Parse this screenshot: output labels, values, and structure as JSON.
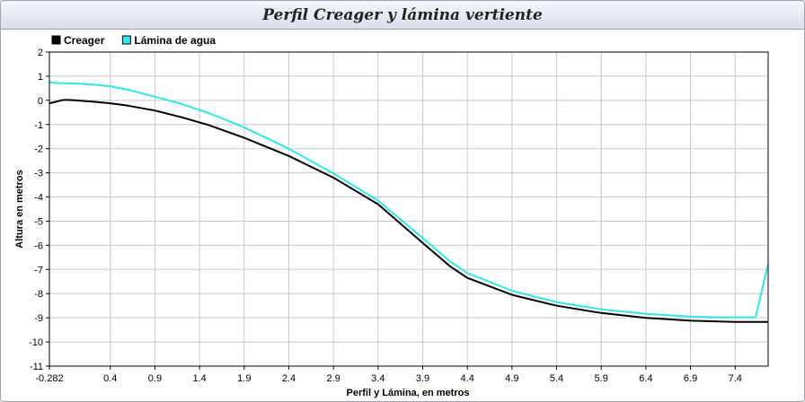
{
  "chart_data": {
    "type": "line",
    "title": "Perfil Creager y lámina vertiente",
    "xlabel": "Perfil y Lámina, en metros",
    "ylabel": "Altura en metros",
    "xlim": [
      -0.282,
      7.77
    ],
    "ylim": [
      -11,
      2
    ],
    "x_ticks": [
      "-0.282",
      "0.4",
      "0.9",
      "1.4",
      "1.9",
      "2.4",
      "2.9",
      "3.4",
      "3.9",
      "4.4",
      "4.9",
      "5.4",
      "5.9",
      "6.4",
      "6.9",
      "7.4"
    ],
    "y_ticks": [
      "2",
      "1",
      "0",
      "-1",
      "-2",
      "-3",
      "-4",
      "-5",
      "-6",
      "-7",
      "-8",
      "-9",
      "-10",
      "-11"
    ],
    "grid": true,
    "legend_position": "top-left",
    "series": [
      {
        "name": "Creager",
        "color": "#000000",
        "x": [
          -0.282,
          -0.2,
          -0.15,
          -0.1,
          0.0,
          0.2,
          0.4,
          0.6,
          0.9,
          1.2,
          1.5,
          1.9,
          2.4,
          2.9,
          3.4,
          3.9,
          4.2,
          4.4,
          4.9,
          5.4,
          5.9,
          6.4,
          6.9,
          7.4,
          7.77
        ],
        "y": [
          -0.12,
          -0.05,
          0.0,
          0.02,
          0.0,
          -0.05,
          -0.12,
          -0.22,
          -0.42,
          -0.7,
          -1.02,
          -1.55,
          -2.3,
          -3.2,
          -4.3,
          -5.9,
          -6.85,
          -7.35,
          -8.05,
          -8.5,
          -8.8,
          -9.0,
          -9.12,
          -9.17,
          -9.17
        ]
      },
      {
        "name": "Lámina de agua",
        "color": "#33e6e6",
        "x": [
          -0.282,
          -0.2,
          0.0,
          0.2,
          0.4,
          0.6,
          0.9,
          1.2,
          1.5,
          1.9,
          2.4,
          2.9,
          3.4,
          3.9,
          4.2,
          4.4,
          4.9,
          5.4,
          5.9,
          6.4,
          6.9,
          7.2,
          7.4,
          7.63,
          7.77
        ],
        "y": [
          0.75,
          0.72,
          0.7,
          0.66,
          0.58,
          0.44,
          0.15,
          -0.15,
          -0.52,
          -1.12,
          -2.0,
          -3.02,
          -4.15,
          -5.7,
          -6.65,
          -7.15,
          -7.88,
          -8.35,
          -8.65,
          -8.84,
          -8.95,
          -8.98,
          -8.98,
          -8.98,
          -6.75
        ]
      }
    ]
  }
}
